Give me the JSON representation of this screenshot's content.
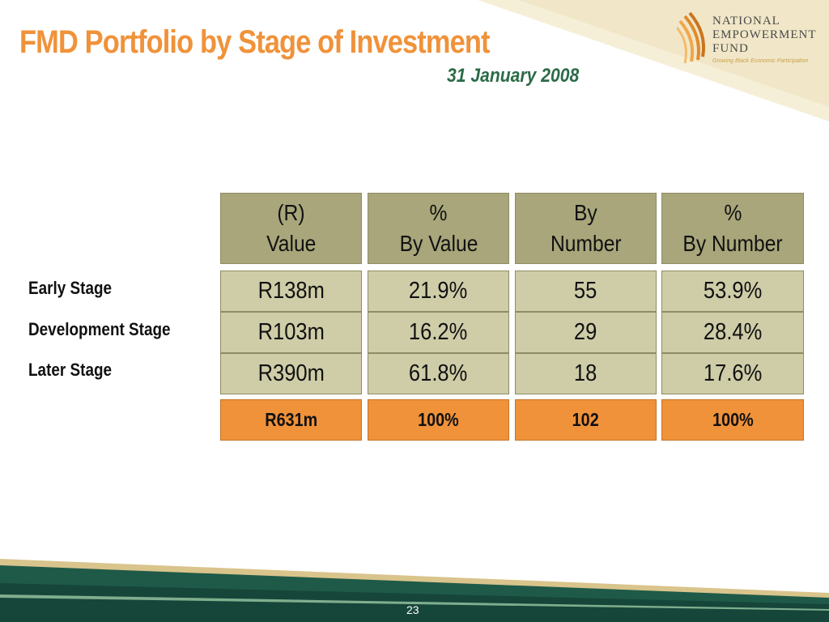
{
  "slide": {
    "title": "FMD Portfolio by Stage of Investment",
    "date": "31 January 2008",
    "page_number": "23"
  },
  "logo": {
    "line1": "NATIONAL",
    "line2": "EMPOWERMENT",
    "line3": "FUND",
    "tagline": "Growing Black Economic Participation"
  },
  "table": {
    "headers": [
      {
        "line1": "(R)",
        "line2": "Value"
      },
      {
        "line1": "%",
        "line2": "By Value"
      },
      {
        "line1": "By",
        "line2": "Number"
      },
      {
        "line1": "%",
        "line2": "By Number"
      }
    ],
    "rows": [
      {
        "label": "Early Stage",
        "values": [
          "R138m",
          "21.9%",
          "55",
          "53.9%"
        ]
      },
      {
        "label": "Development Stage",
        "values": [
          "R103m",
          "16.2%",
          "29",
          "28.4%"
        ]
      },
      {
        "label": "Later Stage",
        "values": [
          "R390m",
          "61.8%",
          "18",
          "17.6%"
        ]
      }
    ],
    "totals": [
      "R631m",
      "100%",
      "102",
      "100%"
    ]
  },
  "colors": {
    "title": "#f0923a",
    "date": "#2b6b47",
    "header_fill": "#a8a67a",
    "data_fill": "#cfcda8",
    "total_fill": "#f0923a",
    "footer_green": "#1e5c4a",
    "corner_cream": "#f4ecd2"
  }
}
